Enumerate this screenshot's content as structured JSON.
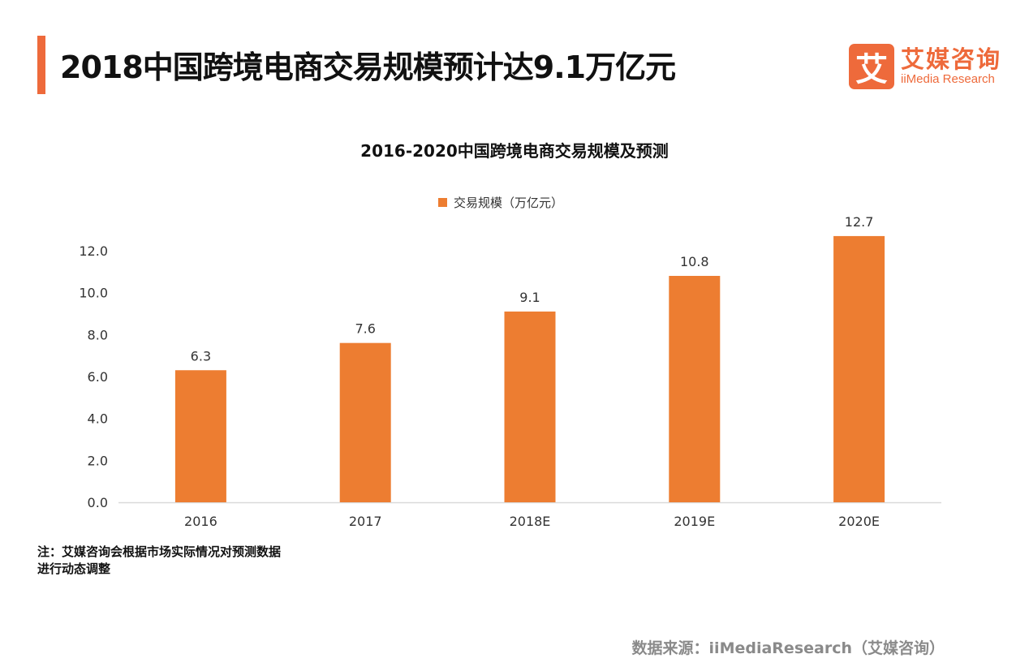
{
  "header": {
    "title": "2018中国跨境电商交易规模预计达9.1万亿元",
    "logo": {
      "glyph": "艾",
      "name_cn": "艾媒咨询",
      "name_en": "iiMedia Research"
    }
  },
  "colors": {
    "accent": "#ee6a3b",
    "bar": "#ed7d31"
  },
  "chart_data": {
    "type": "bar",
    "title": "2016-2020中国跨境电商交易规模及预测",
    "categories": [
      "2016",
      "2017",
      "2018E",
      "2019E",
      "2020E"
    ],
    "series": [
      {
        "name": "交易规模（万亿元）",
        "values": [
          6.3,
          7.6,
          9.1,
          10.8,
          12.7
        ]
      }
    ],
    "data_labels": [
      "6.3",
      "7.6",
      "9.1",
      "10.8",
      "12.7"
    ],
    "xlabel": "",
    "ylabel": "",
    "ylim": [
      0,
      12
    ],
    "yticks": [
      "0.0",
      "2.0",
      "4.0",
      "6.0",
      "8.0",
      "10.0",
      "12.0"
    ],
    "grid": false,
    "legend": "top"
  },
  "footer": {
    "note_line1": "注：艾媒咨询会根据市场实际情况对预测数据",
    "note_line2": "进行动态调整",
    "source": "数据来源：iiMediaResearch（艾媒咨询）"
  }
}
